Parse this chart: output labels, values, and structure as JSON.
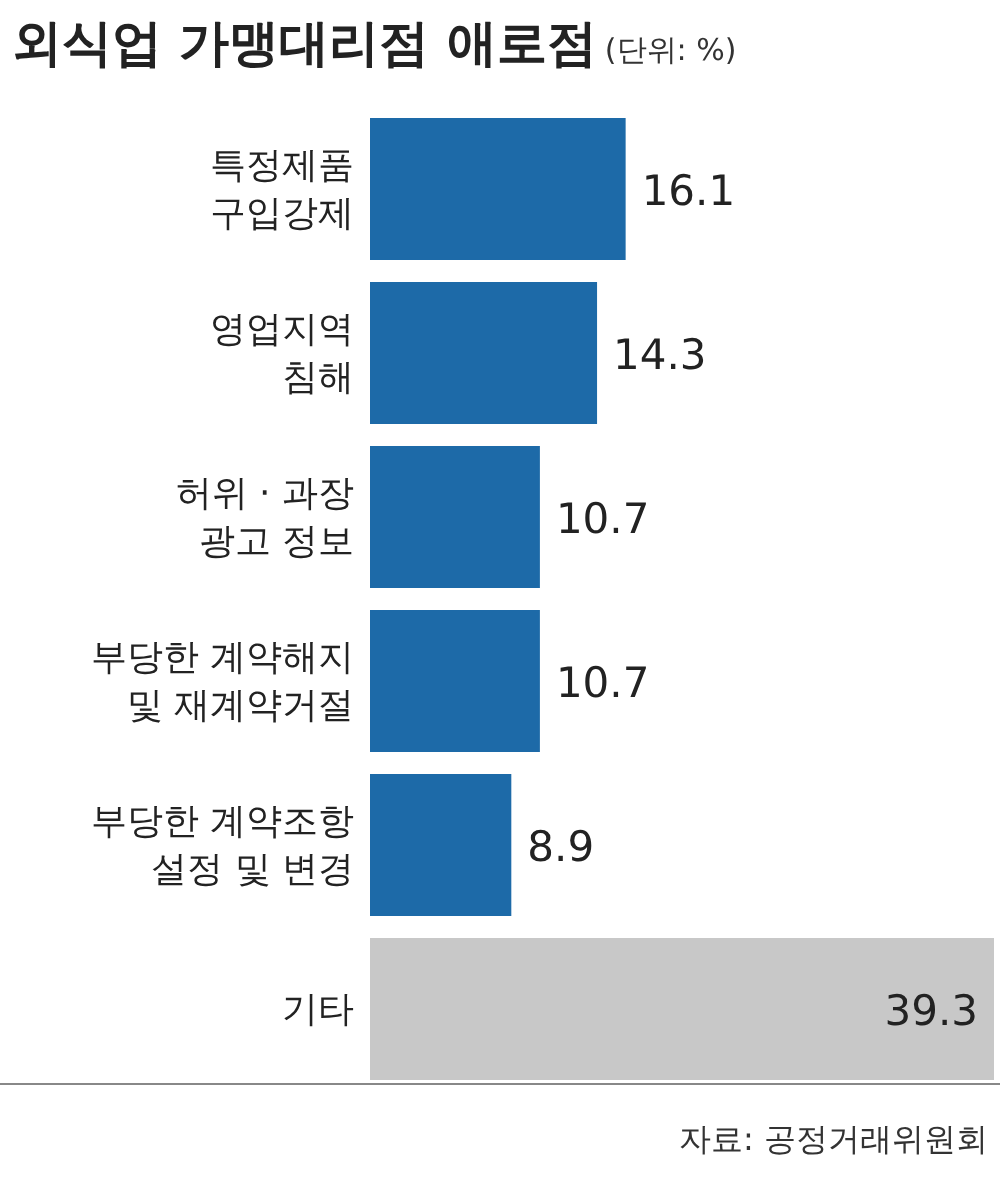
{
  "chart_data": {
    "type": "bar",
    "orientation": "horizontal",
    "title": "외식업 가맹대리점 애로점",
    "subtitle": "(단위: %)",
    "categories": [
      "특정제품\n구입강제",
      "영업지역\n침해",
      "허위 · 과장\n광고 정보",
      "부당한 계약해지\n및 재계약거절",
      "부당한 계약조항\n설정 및 변경",
      "기타"
    ],
    "values": [
      16.1,
      14.3,
      10.7,
      10.7,
      8.9,
      39.3
    ],
    "colors": [
      "#1d6aa8",
      "#1d6aa8",
      "#1d6aa8",
      "#1d6aa8",
      "#1d6aa8",
      "#c8c8c8"
    ],
    "data_labels": true,
    "annotations": [
      "자료: 공정거래위원회"
    ]
  }
}
